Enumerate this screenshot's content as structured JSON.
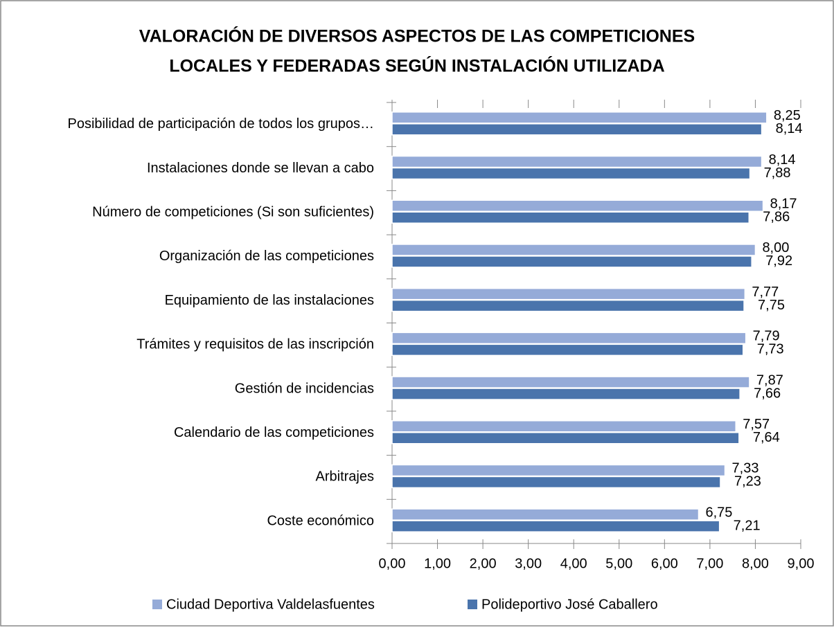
{
  "chart_data": {
    "type": "hbar",
    "title": [
      "VALORACIÓN DE DIVERSOS ASPECTOS DE LAS COMPETICIONES",
      "LOCALES Y FEDERADAS SEGÚN INSTALACIÓN UTILIZADA"
    ],
    "categories": [
      "Posibilidad de participación de todos los grupos…",
      "Instalaciones donde se llevan a cabo",
      "Número de competiciones (Si son suficientes)",
      "Organización de las competiciones",
      "Equipamiento de las instalaciones",
      "Trámites y requisitos de las inscripción",
      "Gestión de incidencias",
      "Calendario de las competiciones",
      "Arbitrajes",
      "Coste económico"
    ],
    "series": [
      {
        "name": "Ciudad Deportiva Valdelasfuentes",
        "color": "#95abd8",
        "values": [
          8.25,
          8.14,
          8.17,
          8.0,
          7.77,
          7.79,
          7.87,
          7.57,
          7.33,
          6.75
        ],
        "value_labels": [
          "8,25",
          "8,14",
          "8,17",
          "8,00",
          "7,77",
          "7,79",
          "7,87",
          "7,57",
          "7,33",
          "6,75"
        ]
      },
      {
        "name": "Polideportivo José Caballero",
        "color": "#4a74ac",
        "values": [
          8.14,
          7.88,
          7.86,
          7.92,
          7.75,
          7.73,
          7.66,
          7.64,
          7.23,
          7.21
        ],
        "value_labels": [
          "8,14",
          "7,88",
          "7,86",
          "7,92",
          "7,75",
          "7,73",
          "7,66",
          "7,64",
          "7,23",
          "7,21"
        ]
      }
    ],
    "xlim": [
      0,
      9
    ],
    "xticks": [
      {
        "value": 0,
        "label": "0,00"
      },
      {
        "value": 1,
        "label": "1,00"
      },
      {
        "value": 2,
        "label": "2,00"
      },
      {
        "value": 3,
        "label": "3,00"
      },
      {
        "value": 4,
        "label": "4,00"
      },
      {
        "value": 5,
        "label": "5,00"
      },
      {
        "value": 6,
        "label": "6,00"
      },
      {
        "value": 7,
        "label": "7,00"
      },
      {
        "value": 8,
        "label": "8,00"
      },
      {
        "value": 9,
        "label": "9,00"
      }
    ],
    "grid": false,
    "legend": "bottom"
  }
}
